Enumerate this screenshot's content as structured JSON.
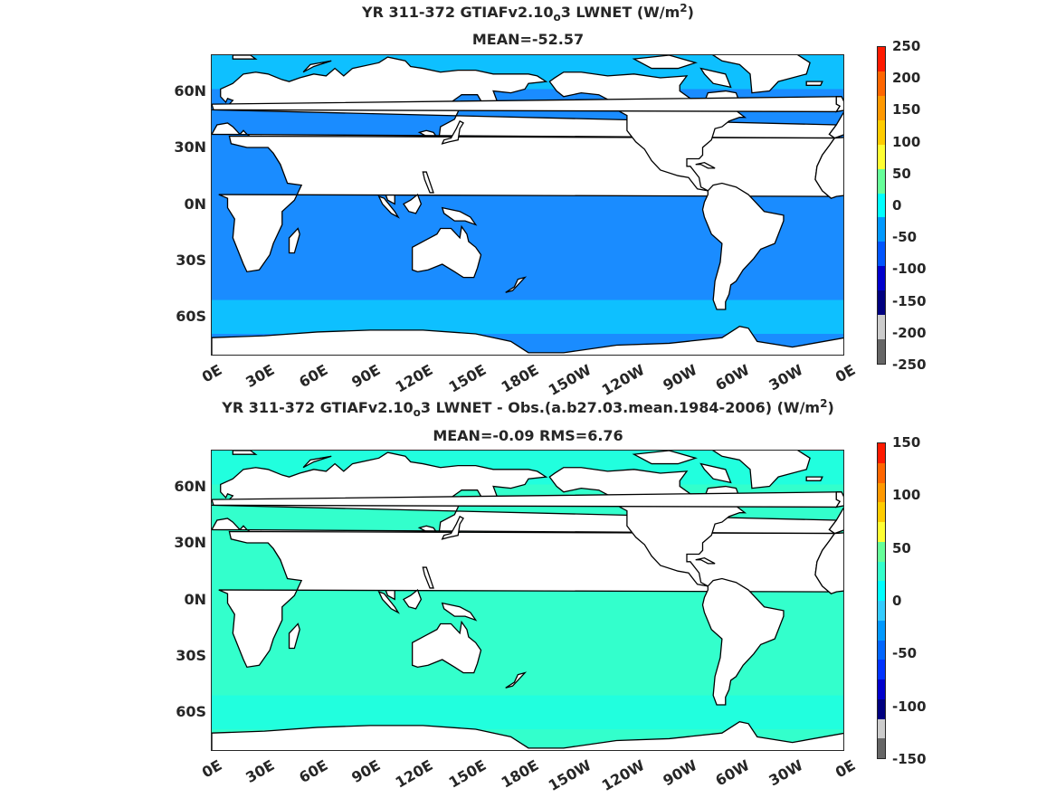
{
  "panels": [
    {
      "title_parts": {
        "a": "YR 311-372 GTIAFv2.10",
        "sub": "o",
        "b": "3  LWNET (W/m",
        "sup": "2",
        "c": ")"
      },
      "subtitle": "MEAN=-52.57",
      "colorbar": {
        "labels": [
          "250",
          "200",
          "150",
          "100",
          "50",
          "0",
          "-50",
          "-100",
          "-150",
          "-200",
          "-250"
        ],
        "colors": [
          "#ff1a00",
          "#ff6600",
          "#ff9900",
          "#ffcc00",
          "#ffff33",
          "#66ff99",
          "#00ffff",
          "#0099ff",
          "#0055ff",
          "#0000cc",
          "#000080",
          "#cccccc",
          "#666666"
        ]
      },
      "ocean_color": "#1a8cff",
      "ocean_band_color": "#00ffff"
    },
    {
      "title_parts": {
        "a": "YR 311-372 GTIAFv2.10",
        "sub": "o",
        "b": "3 LWNET - Obs.(a.b27.03.mean.1984-2006) (W/m",
        "sup": "2",
        "c": ")"
      },
      "subtitle": "MEAN=-0.09 RMS=6.76",
      "colorbar": {
        "labels": [
          "150",
          "100",
          "50",
          "0",
          "-50",
          "-100",
          "-150"
        ],
        "colors": [
          "#ff1a00",
          "#ff6600",
          "#ff9900",
          "#ffcc00",
          "#ffff33",
          "#66ff99",
          "#33ffcc",
          "#00ffff",
          "#33ccff",
          "#0099ff",
          "#0066ff",
          "#0033ff",
          "#0000cc",
          "#000080",
          "#cccccc",
          "#666666"
        ]
      },
      "ocean_color": "#33ffcc",
      "ocean_band_color": "#00ffff"
    }
  ],
  "lat_labels": [
    "60N",
    "30N",
    "0N",
    "30S",
    "60S"
  ],
  "lon_labels": [
    "0E",
    "30E",
    "60E",
    "90E",
    "120E",
    "150E",
    "180E",
    "150W",
    "120W",
    "90W",
    "60W",
    "30W",
    "0E"
  ]
}
